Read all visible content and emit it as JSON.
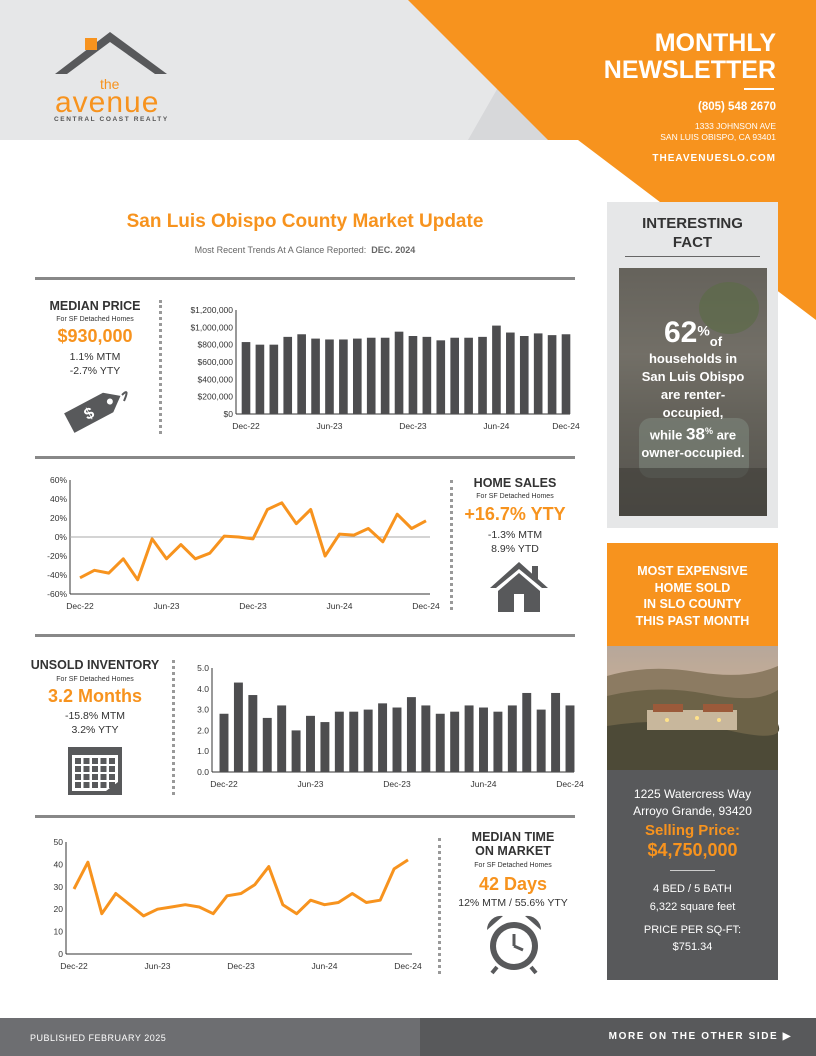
{
  "header": {
    "logo_the": "the",
    "logo_name": "avenue",
    "logo_sub": "CENTRAL COAST REALTY",
    "newsletter_line1": "MONTHLY",
    "newsletter_line2": "NEWSLETTER",
    "phone": "(805) 548 2670",
    "address_line1": "1333 JOHNSON AVE",
    "address_line2": "SAN LUIS OBISPO, CA 93401",
    "website": "THEAVENUESLO.COM"
  },
  "colors": {
    "accent": "#f7931e",
    "dark_gray": "#58595b",
    "bar_gray": "#4d4d4f",
    "light_gray": "#e6e7e8"
  },
  "title": {
    "main": "San Luis Obispo County Market Update",
    "sub_prefix": "Most Recent Trends At A Glance Reported:",
    "sub_date": "DEC. 2024"
  },
  "median_price": {
    "label": "MEDIAN PRICE",
    "sub": "For SF Detached Homes",
    "value": "$930,000",
    "mtm": "1.1% MTM",
    "yty": "-2.7% YTY",
    "icon": "price-tag-icon"
  },
  "home_sales": {
    "label": "HOME SALES",
    "sub": "For SF Detached Homes",
    "value": "+16.7% YTY",
    "mtm": "-1.3% MTM",
    "ytd": "8.9% YTD",
    "icon": "house-icon"
  },
  "unsold_inventory": {
    "label": "UNSOLD INVENTORY",
    "sub": "For SF Detached Homes",
    "value": "3.2 Months",
    "mtm": "-15.8% MTM",
    "yty": "3.2% YTY",
    "icon": "calendar-icon"
  },
  "median_time": {
    "label_line1": "MEDIAN TIME",
    "label_line2": "ON MARKET",
    "sub": "For SF Detached Homes",
    "value": "42 Days",
    "change": "12% MTM / 55.6% YTY",
    "icon": "alarm-clock-icon"
  },
  "chart_data": [
    {
      "type": "bar",
      "name": "median-price",
      "x_ticks": [
        "Dec-22",
        "Jun-23",
        "Dec-23",
        "Jun-24",
        "Dec-24"
      ],
      "y_ticks": [
        "$1,200,000",
        "$1,000,000",
        "$800,000",
        "$600,000",
        "$400,000",
        "$200,000",
        "$0"
      ],
      "ylim": [
        0,
        1200000
      ],
      "values": [
        830000,
        800000,
        800000,
        890000,
        920000,
        870000,
        860000,
        860000,
        870000,
        880000,
        880000,
        950000,
        900000,
        890000,
        850000,
        880000,
        880000,
        890000,
        1020000,
        940000,
        900000,
        930000,
        910000,
        920000
      ]
    },
    {
      "type": "line",
      "name": "home-sales-yty",
      "x_ticks": [
        "Dec-22",
        "Jun-23",
        "Dec-23",
        "Jun-24",
        "Dec-24"
      ],
      "y_ticks": [
        "60%",
        "40%",
        "20%",
        "0%",
        "-20%",
        "-40%",
        "-60%"
      ],
      "ylim": [
        -60,
        60
      ],
      "values": [
        -43,
        -35,
        -38,
        -23,
        -45,
        -2,
        -23,
        -8,
        -23,
        -17,
        1,
        0,
        -2,
        29,
        36,
        14,
        29,
        -20,
        3,
        2,
        9,
        -5,
        24,
        9,
        17
      ]
    },
    {
      "type": "bar",
      "name": "unsold-inventory",
      "x_ticks": [
        "Dec-22",
        "Jun-23",
        "Dec-23",
        "Jun-24",
        "Dec-24"
      ],
      "y_ticks": [
        "5.0",
        "4.0",
        "3.0",
        "2.0",
        "1.0",
        "0.0"
      ],
      "ylim": [
        0,
        5
      ],
      "values": [
        2.8,
        4.3,
        3.7,
        2.6,
        3.2,
        2.0,
        2.7,
        2.4,
        2.9,
        2.9,
        3.0,
        3.3,
        3.1,
        3.6,
        3.2,
        2.8,
        2.9,
        3.2,
        3.1,
        2.9,
        3.2,
        3.8,
        3.0,
        3.8,
        3.2
      ]
    },
    {
      "type": "line",
      "name": "median-time-on-market",
      "x_ticks": [
        "Dec-22",
        "Jun-23",
        "Dec-23",
        "Jun-24",
        "Dec-24"
      ],
      "y_ticks": [
        "50",
        "40",
        "30",
        "20",
        "10",
        "0"
      ],
      "ylim": [
        0,
        50
      ],
      "values": [
        29,
        41,
        18,
        27,
        22,
        17,
        20,
        21,
        22,
        21,
        18,
        26,
        27,
        31,
        39,
        22,
        18,
        24,
        22,
        23,
        27,
        23,
        24,
        38,
        42
      ]
    }
  ],
  "fact": {
    "title_line1": "INTERESTING",
    "title_line2": "FACT",
    "pct1": "62",
    "pct_sign": "%",
    "of": "of",
    "line1": "households in",
    "line2": "San Luis Obispo",
    "line3": "are renter-",
    "line4": "occupied,",
    "while": "while",
    "pct2": "38",
    "are": "are",
    "line6": "owner-occupied."
  },
  "expensive": {
    "title_line1": "MOST EXPENSIVE",
    "title_line2": "HOME SOLD",
    "title_line3": "IN SLO COUNTY",
    "title_line4": "THIS PAST MONTH",
    "address1": "1225 Watercress Way",
    "address2": "Arroyo Grande, 93420",
    "price_label": "Selling Price:",
    "price": "$4,750,000",
    "beds": "4 BED / 5 BATH",
    "sqft": "6,322 square feet",
    "ppsf_label": "PRICE PER SQ-FT:",
    "ppsf": "$751.34"
  },
  "footer": {
    "published": "PUBLISHED FEBRUARY 2025",
    "more": "MORE ON THE OTHER SIDE",
    "arrow": "▶"
  }
}
